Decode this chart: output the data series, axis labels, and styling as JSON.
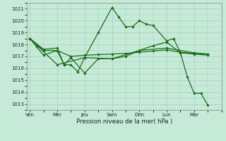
{
  "xlabel": "Pression niveau de la mer( hPa )",
  "background_color": "#c5ead8",
  "grid_color": "#aaccbb",
  "line_color": "#1a6e1a",
  "ylim": [
    1012.5,
    1021.5
  ],
  "yticks": [
    1013,
    1014,
    1015,
    1016,
    1017,
    1018,
    1019,
    1020,
    1021
  ],
  "day_labels": [
    "Ven",
    "Mer",
    "Jeu",
    "Sam",
    "Dim",
    "Lun",
    "Mar"
  ],
  "day_x": [
    0,
    2,
    4,
    6,
    8,
    10,
    12
  ],
  "xlim": [
    -0.2,
    14.0
  ],
  "s1_x": [
    0,
    0.5,
    1,
    2,
    2.5,
    3,
    3.5,
    4,
    5,
    6,
    6.5,
    7,
    7.5,
    8,
    8.5,
    9,
    10,
    10.5,
    11,
    11.5,
    12,
    12.5,
    13
  ],
  "s1_y": [
    1018.5,
    1017.8,
    1017.1,
    1017.5,
    1016.3,
    1016.3,
    1015.7,
    1016.9,
    1019.0,
    1021.1,
    1020.3,
    1019.5,
    1019.5,
    1020.0,
    1019.7,
    1019.6,
    1018.3,
    1018.5,
    1017.3,
    1015.3,
    1013.9,
    1013.9,
    1012.9
  ],
  "s2_x": [
    0,
    1,
    2,
    3,
    4,
    5,
    6,
    7,
    8,
    9,
    10,
    11,
    12,
    13
  ],
  "s2_y": [
    1018.5,
    1017.5,
    1017.5,
    1017.0,
    1017.1,
    1017.15,
    1017.2,
    1017.25,
    1017.35,
    1017.45,
    1017.55,
    1017.35,
    1017.25,
    1017.2
  ],
  "s3_x": [
    0,
    1,
    2,
    2.5,
    3,
    4,
    5,
    6,
    7,
    8,
    9,
    10,
    11,
    12,
    13
  ],
  "s3_y": [
    1018.5,
    1017.6,
    1017.7,
    1016.3,
    1016.9,
    1015.6,
    1016.8,
    1016.8,
    1017.0,
    1017.5,
    1017.9,
    1018.2,
    1017.3,
    1017.2,
    1017.1
  ],
  "s4_x": [
    0,
    2,
    4,
    6,
    8,
    10,
    12,
    13
  ],
  "s4_y": [
    1018.5,
    1016.3,
    1016.9,
    1016.8,
    1017.5,
    1017.7,
    1017.3,
    1017.2
  ]
}
